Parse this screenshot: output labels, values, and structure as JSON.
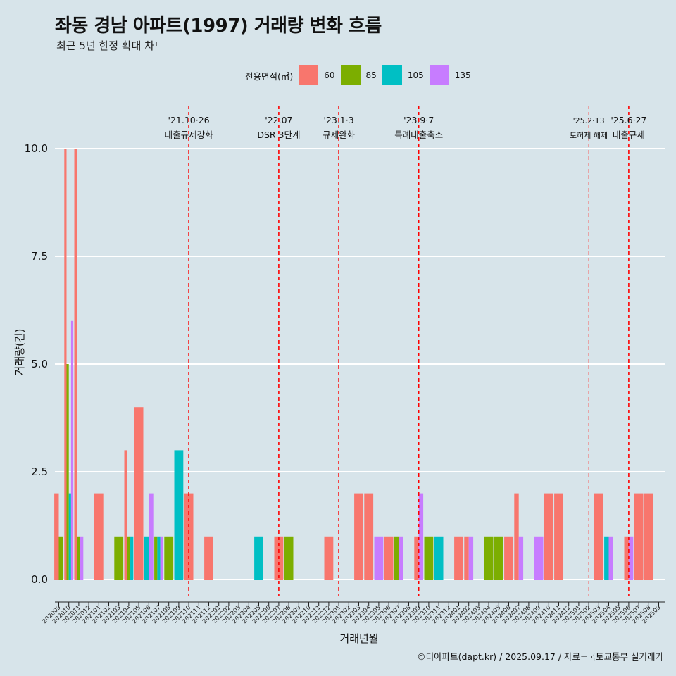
{
  "header": {
    "title": "좌동 경남 아파트(1997) 거래량 변화 흐름",
    "subtitle": "최근 5년 한정 확대 차트"
  },
  "legend": {
    "title": "전용면적(㎡)",
    "items": [
      {
        "label": "60",
        "color": "#f8766d"
      },
      {
        "label": "85",
        "color": "#7cae00"
      },
      {
        "label": "105",
        "color": "#00bfc4"
      },
      {
        "label": "135",
        "color": "#c77cff"
      }
    ]
  },
  "caption": "©디아파트(dapt.kr) / 2025.09.17 / 자료=국토교통부 실거래가",
  "chart_data": {
    "type": "bar",
    "xlabel": "거래년월",
    "ylabel": "거래량(건)",
    "ylim": [
      -0.45,
      11.0
    ],
    "yticks": [
      "0.0",
      "2.5",
      "5.0",
      "7.5",
      "10.0"
    ],
    "ytick_values": [
      0,
      2.5,
      5,
      7.5,
      10
    ],
    "grid": true,
    "legend_position": "top",
    "categories": [
      "202009",
      "202010",
      "202011",
      "202012",
      "202101",
      "202102",
      "202103",
      "202104",
      "202105",
      "202106",
      "202107",
      "202108",
      "202109",
      "202110",
      "202111",
      "202112",
      "202201",
      "202202",
      "202203",
      "202204",
      "202205",
      "202206",
      "202207",
      "202208",
      "202209",
      "202210",
      "202211",
      "202212",
      "202301",
      "202302",
      "202303",
      "202304",
      "202305",
      "202306",
      "202307",
      "202308",
      "202309",
      "202310",
      "202311",
      "202312",
      "202401",
      "202402",
      "202403",
      "202404",
      "202405",
      "202406",
      "202407",
      "202408",
      "202409",
      "202410",
      "202411",
      "202412",
      "202501",
      "202502",
      "202503",
      "202504",
      "202505",
      "202506",
      "202507",
      "202508",
      "202509"
    ],
    "series": [
      {
        "name": "60",
        "values": [
          2,
          10,
          10,
          0,
          2,
          0,
          0,
          3,
          4,
          0,
          0,
          0,
          0,
          2,
          0,
          1,
          0,
          0,
          0,
          0,
          0,
          0,
          1,
          0,
          0,
          0,
          0,
          1,
          0,
          0,
          2,
          2,
          0,
          1,
          0,
          0,
          1,
          0,
          0,
          0,
          1,
          1,
          0,
          0,
          0,
          1,
          2,
          0,
          0,
          2,
          2,
          0,
          0,
          0,
          2,
          0,
          0,
          1,
          2,
          2,
          0
        ]
      },
      {
        "name": "85",
        "values": [
          1,
          5,
          1,
          0,
          0,
          0,
          1,
          1,
          0,
          0,
          1,
          1,
          0,
          0,
          0,
          0,
          0,
          0,
          0,
          0,
          0,
          0,
          0,
          1,
          0,
          0,
          0,
          0,
          0,
          0,
          0,
          0,
          0,
          0,
          1,
          0,
          0,
          1,
          0,
          0,
          0,
          0,
          0,
          1,
          1,
          0,
          0,
          0,
          0,
          0,
          0,
          0,
          0,
          0,
          0,
          0,
          0,
          0,
          0,
          0,
          0
        ]
      },
      {
        "name": "105",
        "values": [
          0,
          2,
          0,
          0,
          0,
          0,
          0,
          1,
          0,
          1,
          1,
          0,
          3,
          0,
          0,
          0,
          0,
          0,
          0,
          0,
          1,
          0,
          0,
          0,
          0,
          0,
          0,
          0,
          0,
          0,
          0,
          0,
          0,
          0,
          0,
          0,
          0,
          0,
          1,
          0,
          0,
          0,
          0,
          0,
          0,
          0,
          0,
          0,
          0,
          0,
          0,
          0,
          0,
          0,
          0,
          1,
          0,
          0,
          0,
          0,
          0
        ]
      },
      {
        "name": "135",
        "values": [
          0,
          6,
          1,
          0,
          0,
          0,
          0,
          0,
          0,
          2,
          1,
          0,
          0,
          0,
          0,
          0,
          0,
          0,
          0,
          0,
          0,
          0,
          0,
          0,
          0,
          0,
          0,
          0,
          0,
          0,
          0,
          0,
          1,
          0,
          1,
          0,
          2,
          0,
          0,
          0,
          0,
          1,
          0,
          0,
          0,
          0,
          1,
          0,
          1,
          0,
          0,
          0,
          0,
          0,
          0,
          1,
          0,
          1,
          0,
          0,
          0
        ]
      }
    ],
    "annotations": [
      {
        "month": "202110",
        "date": "'21.10·26",
        "label": "대출규제강화",
        "style": "bold"
      },
      {
        "month": "202207",
        "date": "'22.07",
        "label": "DSR 3단계",
        "style": "bold"
      },
      {
        "month": "202301",
        "date": "'23.1·3",
        "label": "규제완화",
        "style": "bold"
      },
      {
        "month": "202309",
        "date": "'23.9·7",
        "label": "특례대출축소",
        "style": "bold"
      },
      {
        "month": "202502",
        "date": "'25.2·13",
        "label": "토허제 해제",
        "style": "thin"
      },
      {
        "month": "202506",
        "date": "'25.6·27",
        "label": "대출규제",
        "style": "bold"
      }
    ]
  }
}
